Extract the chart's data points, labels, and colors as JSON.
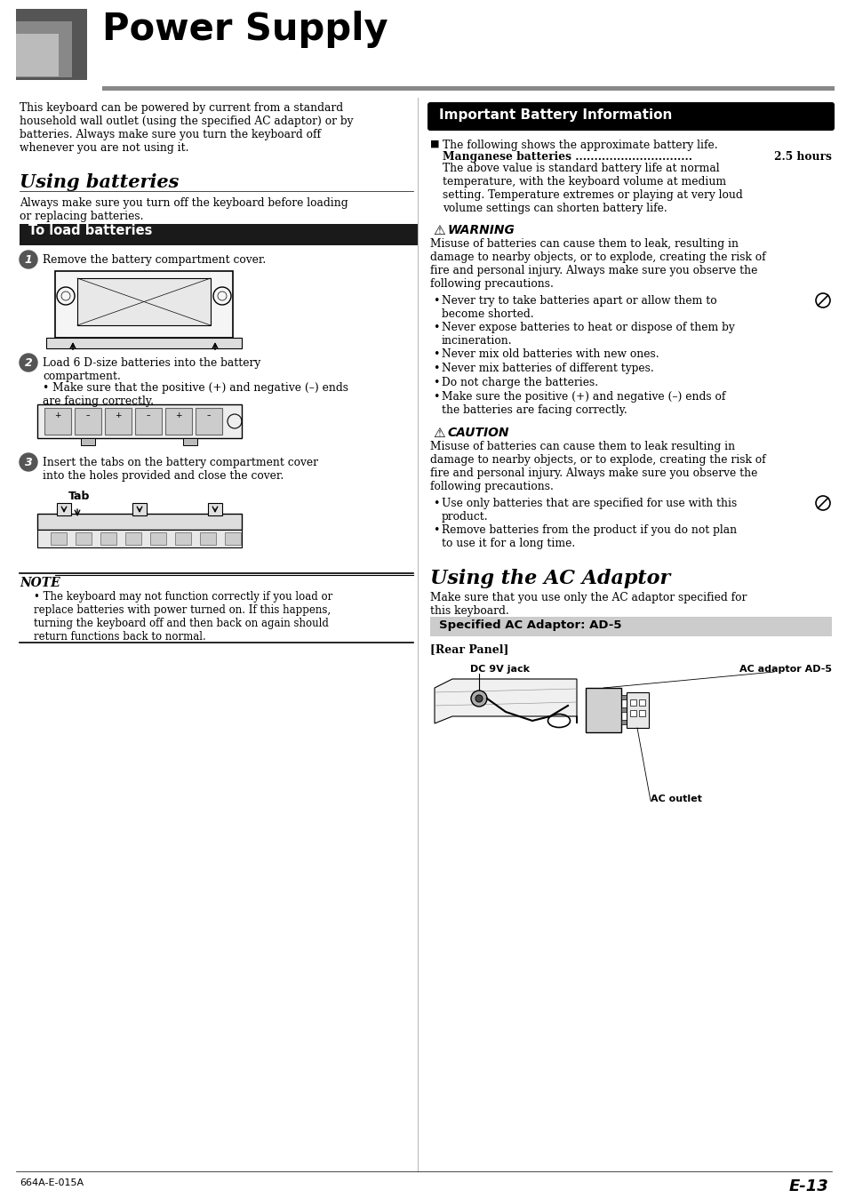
{
  "title": "Power Supply",
  "bg_color": "#ffffff",
  "page_num": "E-13",
  "footer_left": "664A-E-015A",
  "intro_text": "This keyboard can be powered by current from a standard\nhousehold wall outlet (using the specified AC adaptor) or by\nbatteries. Always make sure you turn the keyboard off\nwhenever you are not using it.",
  "using_batteries_title": "Using batteries",
  "using_batteries_intro": "Always make sure you turn off the keyboard before loading\nor replacing batteries.",
  "to_load_batteries_header": "To load batteries",
  "step1_text": "Remove the battery compartment cover.",
  "step2_text": "Load 6 D-size batteries into the battery\ncompartment.",
  "step2_bullet": "Make sure that the positive (+) and negative (–) ends\nare facing correctly.",
  "step3_text": "Insert the tabs on the battery compartment cover\ninto the holes provided and close the cover.",
  "tab_label": "Tab",
  "note_header": "NOTE",
  "note_text": "The keyboard may not function correctly if you load or\nreplace batteries with power turned on. If this happens,\nturning the keyboard off and then back on again should\nreturn functions back to normal.",
  "imp_battery_header": "Important Battery Information",
  "battery_bullet1": "The following shows the approximate battery life.",
  "battery_manganese_line": "Manganese batteries ............................... 2.5 hours",
  "battery_manganese": "Manganese batteries ...............................",
  "battery_hours": "2.5 hours",
  "battery_note": "The above value is standard battery life at normal\ntemperature, with the keyboard volume at medium\nsetting. Temperature extremes or playing at very loud\nvolume settings can shorten battery life.",
  "warning_header": "WARNING",
  "warning_intro": "Misuse of batteries can cause them to leak, resulting in\ndamage to nearby objects, or to explode, creating the risk of\nfire and personal injury. Always make sure you observe the\nfollowing precautions.",
  "warning_bullets": [
    "Never try to take batteries apart or allow them to\nbecome shorted.",
    "Never expose batteries to heat or dispose of them by\nincineration.",
    "Never mix old batteries with new ones.",
    "Never mix batteries of different types.",
    "Do not charge the batteries.",
    "Make sure the positive (+) and negative (–) ends of\nthe batteries are facing correctly."
  ],
  "warning_has_symbol": [
    true,
    false,
    false,
    false,
    false,
    false
  ],
  "caution_header": "CAUTION",
  "caution_intro": "Misuse of batteries can cause them to leak resulting in\ndamage to nearby objects, or to explode, creating the risk of\nfire and personal injury. Always make sure you observe the\nfollowing precautions.",
  "caution_bullets": [
    "Use only batteries that are specified for use with this\nproduct.",
    "Remove batteries from the product if you do not plan\nto use it for a long time."
  ],
  "caution_has_symbol": [
    true,
    false
  ],
  "using_ac_title": "Using the AC Adaptor",
  "using_ac_text": "Make sure that you use only the AC adaptor specified for\nthis keyboard.",
  "specified_ac_header": "Specified AC Adaptor: AD-5",
  "rear_panel_label": "[Rear Panel]",
  "dc_jack_label": "DC 9V jack",
  "ac_adaptor_label": "AC adaptor AD-5",
  "ac_outlet_label": "AC outlet"
}
